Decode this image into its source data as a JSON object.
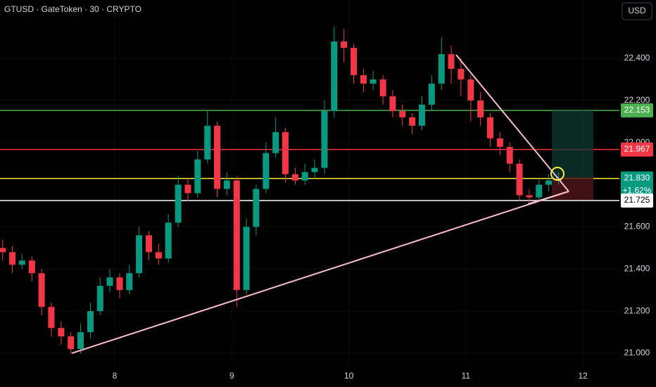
{
  "chart_data": {
    "type": "candlestick",
    "title": "GTUSD · GateToken · 30 · CRYPTO",
    "currency": "USD",
    "change": "+1.62%",
    "up_color": "#089981",
    "down_color": "#f23645",
    "x": [
      7.042,
      7.125,
      7.208,
      7.292,
      7.375,
      7.458,
      7.542,
      7.625,
      7.708,
      7.792,
      7.875,
      7.958,
      8.042,
      8.125,
      8.208,
      8.292,
      8.375,
      8.458,
      8.542,
      8.625,
      8.708,
      8.792,
      8.875,
      8.958,
      9.042,
      9.125,
      9.208,
      9.292,
      9.375,
      9.458,
      9.542,
      9.625,
      9.708,
      9.792,
      9.875,
      9.958,
      10.042,
      10.125,
      10.208,
      10.292,
      10.375,
      10.458,
      10.542,
      10.625,
      10.708,
      10.792,
      10.875,
      10.958,
      11.042,
      11.125,
      11.208,
      11.292,
      11.375,
      11.458,
      11.542,
      11.625,
      11.708,
      11.792
    ],
    "open": [
      21.5,
      21.48,
      21.42,
      21.44,
      21.38,
      21.22,
      21.12,
      21.08,
      21.02,
      21.1,
      21.2,
      21.32,
      21.36,
      21.3,
      21.38,
      21.56,
      21.48,
      21.45,
      21.62,
      21.8,
      21.76,
      21.92,
      22.08,
      21.78,
      21.82,
      21.3,
      21.6,
      21.78,
      21.95,
      22.05,
      21.85,
      21.82,
      21.86,
      21.88,
      22.15,
      22.48,
      22.45,
      22.32,
      22.28,
      22.3,
      22.22,
      22.15,
      22.12,
      22.08,
      22.18,
      22.28,
      22.42,
      22.35,
      22.3,
      22.2,
      22.12,
      22.02,
      21.98,
      21.9,
      21.75,
      21.74,
      21.8,
      21.82
    ],
    "high": [
      21.54,
      21.51,
      21.47,
      21.46,
      21.4,
      21.24,
      21.15,
      21.1,
      21.14,
      21.24,
      21.36,
      21.4,
      21.38,
      21.42,
      21.6,
      21.58,
      21.52,
      21.66,
      21.84,
      21.83,
      21.96,
      22.15,
      22.1,
      21.86,
      21.84,
      21.64,
      21.8,
      22.0,
      22.12,
      22.07,
      21.88,
      21.9,
      21.92,
      22.2,
      22.55,
      22.54,
      22.47,
      22.35,
      22.34,
      22.32,
      22.25,
      22.18,
      22.14,
      22.22,
      22.32,
      22.5,
      22.46,
      22.4,
      22.32,
      22.24,
      22.14,
      22.05,
      22.0,
      21.92,
      21.78,
      21.83,
      21.85,
      21.86
    ],
    "low": [
      21.44,
      21.38,
      21.4,
      21.34,
      21.18,
      21.08,
      21.04,
      21.0,
      21.0,
      21.07,
      21.18,
      21.29,
      21.26,
      21.28,
      21.36,
      21.44,
      21.42,
      21.43,
      21.6,
      21.72,
      21.74,
      21.9,
      21.74,
      21.75,
      21.22,
      21.28,
      21.56,
      21.76,
      21.93,
      21.81,
      21.8,
      21.8,
      21.83,
      21.85,
      22.12,
      22.38,
      22.28,
      22.24,
      22.25,
      22.18,
      22.12,
      22.08,
      22.04,
      22.06,
      22.15,
      22.25,
      22.28,
      22.22,
      22.1,
      22.08,
      21.98,
      21.94,
      21.86,
      21.72,
      21.71,
      21.72,
      21.77,
      21.8
    ],
    "close": [
      21.48,
      21.42,
      21.44,
      21.38,
      21.22,
      21.12,
      21.08,
      21.02,
      21.1,
      21.2,
      21.32,
      21.36,
      21.3,
      21.38,
      21.56,
      21.48,
      21.45,
      21.62,
      21.8,
      21.76,
      21.92,
      22.08,
      21.78,
      21.82,
      21.3,
      21.6,
      21.78,
      21.95,
      22.05,
      21.85,
      21.82,
      21.86,
      21.88,
      22.15,
      22.48,
      22.45,
      22.32,
      22.28,
      22.3,
      22.22,
      22.15,
      22.12,
      22.08,
      22.18,
      22.28,
      22.42,
      22.35,
      22.3,
      22.2,
      22.12,
      22.02,
      21.98,
      21.9,
      21.75,
      21.74,
      21.8,
      21.82,
      21.83
    ],
    "xlim": [
      7.0195,
      12.312
    ],
    "xticks": [
      8,
      9,
      10,
      11,
      12
    ],
    "ylim": [
      20.94,
      22.677
    ],
    "yticks": [
      {
        "value": 21.0,
        "label": "21.000"
      },
      {
        "value": 21.2,
        "label": "21.200"
      },
      {
        "value": 21.4,
        "label": "21.400"
      },
      {
        "value": 21.6,
        "label": "21.600"
      },
      {
        "value": 22.0,
        "label": "22.000"
      },
      {
        "value": 22.2,
        "label": "22.200"
      },
      {
        "value": 22.4,
        "label": "22.400"
      }
    ],
    "levels": [
      {
        "value": 22.153,
        "color": "#4caf50",
        "label_color": "#4caf50"
      },
      {
        "value": 21.967,
        "color": "#f23645",
        "label_color": "#f23645"
      },
      {
        "value": 21.83,
        "label": "21.830",
        "color": "#ffeb3b",
        "label_color": "#089981"
      },
      {
        "value": 21.725,
        "color": "#ffffff",
        "label_color": "#ffffff"
      }
    ]
  }
}
